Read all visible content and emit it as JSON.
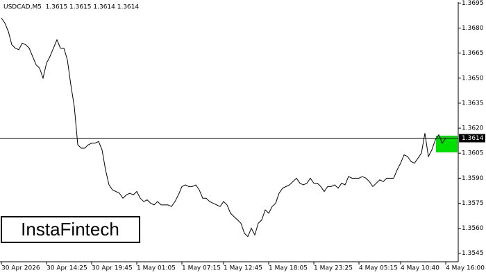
{
  "chart_data": {
    "type": "line",
    "title": "USDCAD,M5  1.3615 1.3615 1.3614 1.3614",
    "watermark": "InstaFintech",
    "series": [
      {
        "name": "USDCAD",
        "color": "#000000",
        "values": [
          1.3686,
          1.3683,
          1.3678,
          1.367,
          1.3668,
          1.3667,
          1.3671,
          1.367,
          1.3668,
          1.3663,
          1.3658,
          1.3656,
          1.365,
          1.3659,
          1.3663,
          1.3668,
          1.3673,
          1.3668,
          1.3668,
          1.3661,
          1.3646,
          1.3633,
          1.361,
          1.3608,
          1.3608,
          1.361,
          1.3611,
          1.3611,
          1.3612,
          1.3607,
          1.3595,
          1.3586,
          1.3583,
          1.3582,
          1.3581,
          1.3578,
          1.358,
          1.3581,
          1.358,
          1.3582,
          1.3578,
          1.3576,
          1.3577,
          1.3575,
          1.3574,
          1.3576,
          1.3574,
          1.3574,
          1.3574,
          1.3573,
          1.3576,
          1.358,
          1.3585,
          1.3586,
          1.3585,
          1.3585,
          1.3586,
          1.3583,
          1.3578,
          1.3578,
          1.3576,
          1.3575,
          1.3574,
          1.3573,
          1.3576,
          1.3574,
          1.3569,
          1.3567,
          1.3565,
          1.3563,
          1.3557,
          1.3555,
          1.356,
          1.3556,
          1.3563,
          1.3565,
          1.3571,
          1.3569,
          1.3573,
          1.3575,
          1.3581,
          1.3584,
          1.3585,
          1.3586,
          1.3588,
          1.359,
          1.3587,
          1.3586,
          1.3587,
          1.359,
          1.3587,
          1.3587,
          1.3585,
          1.3582,
          1.3585,
          1.3585,
          1.3586,
          1.3584,
          1.3587,
          1.3586,
          1.3591,
          1.359,
          1.359,
          1.359,
          1.3591,
          1.359,
          1.3588,
          1.3585,
          1.3587,
          1.3589,
          1.3588,
          1.359,
          1.359,
          1.359,
          1.3595,
          1.3599,
          1.3604,
          1.3603,
          1.36,
          1.3599,
          1.3602,
          1.3605,
          1.3617,
          1.3603,
          1.3607,
          1.3613,
          1.3616,
          1.3611,
          1.3614,
          1.3614,
          1.3614
        ]
      }
    ],
    "current_price": 1.3614,
    "xlim": [
      0,
      130
    ],
    "xticks": [
      {
        "value": 0,
        "label": "30 Apr 2026"
      },
      {
        "value": 13,
        "label": "30 Apr 14:25"
      },
      {
        "value": 26,
        "label": "30 Apr 19:45"
      },
      {
        "value": 39,
        "label": "1 May 01:05"
      },
      {
        "value": 52,
        "label": "1 May 07:15"
      },
      {
        "value": 64,
        "label": "1 May 12:45"
      },
      {
        "value": 77,
        "label": "1 May 18:05"
      },
      {
        "value": 90,
        "label": "1 May 23:25"
      },
      {
        "value": 103,
        "label": "4 May 05:15"
      },
      {
        "value": 115,
        "label": "4 May 10:40"
      },
      {
        "value": 128,
        "label": "4 May 16:00"
      }
    ],
    "ylim": [
      1.35399,
      1.36956
    ],
    "yticks": [
      {
        "value": 1.3545,
        "label": "1.3545"
      },
      {
        "value": 1.356,
        "label": "1.3560"
      },
      {
        "value": 1.3575,
        "label": "1.3575"
      },
      {
        "value": 1.359,
        "label": "1.3590"
      },
      {
        "value": 1.3605,
        "label": "1.3605"
      },
      {
        "value": 1.362,
        "label": "1.3620"
      },
      {
        "value": 1.3635,
        "label": "1.3635"
      },
      {
        "value": 1.365,
        "label": "1.3650"
      },
      {
        "value": 1.3665,
        "label": "1.3665"
      },
      {
        "value": 1.368,
        "label": "1.3680"
      },
      {
        "value": 1.3695,
        "label": "1.3695"
      }
    ]
  }
}
